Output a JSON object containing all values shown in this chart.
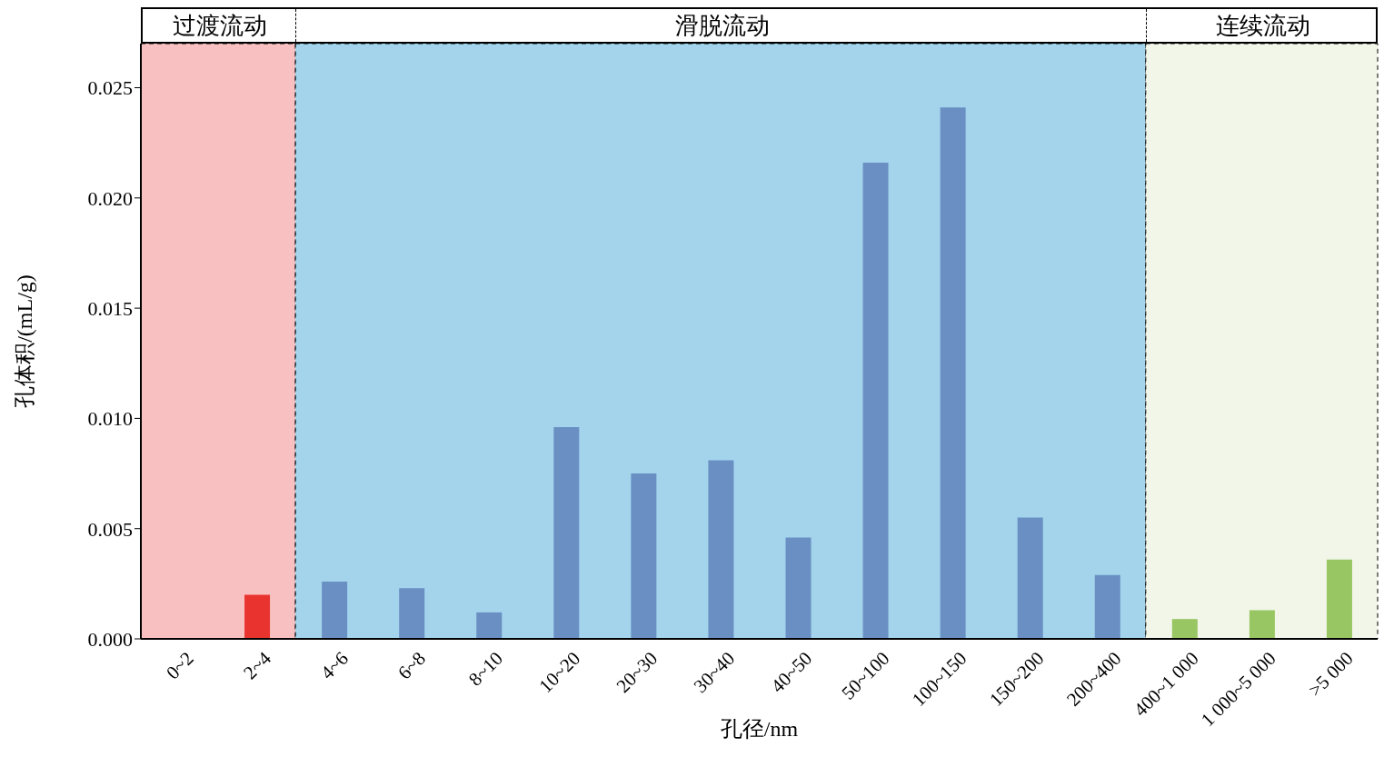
{
  "chart_data": {
    "type": "bar",
    "xlabel": "孔径/nm",
    "ylabel": "孔体积/(mL/g)",
    "categories": [
      "0~2",
      "2~4",
      "4~6",
      "6~8",
      "8~10",
      "10~20",
      "20~30",
      "30~40",
      "40~50",
      "50~100",
      "100~150",
      "150~200",
      "200~400",
      "400~1 000",
      "1 000~5 000",
      ">5 000"
    ],
    "values": [
      0,
      0.002,
      0.0026,
      0.0023,
      0.0012,
      0.0096,
      0.0075,
      0.0081,
      0.0046,
      0.0216,
      0.0241,
      0.0055,
      0.0029,
      0.0009,
      0.0013,
      0.0036
    ],
    "colors": [
      "#e8332e",
      "#e8332e",
      "#6a8fc3",
      "#6a8fc3",
      "#6a8fc3",
      "#6a8fc3",
      "#6a8fc3",
      "#6a8fc3",
      "#6a8fc3",
      "#6a8fc3",
      "#6a8fc3",
      "#6a8fc3",
      "#6a8fc3",
      "#98c663",
      "#98c663",
      "#98c663"
    ],
    "ylim": [
      0,
      0.027
    ],
    "yticks": [
      {
        "value": 0,
        "label": "0.000"
      },
      {
        "value": 0.005,
        "label": "0.005"
      },
      {
        "value": 0.01,
        "label": "0.010"
      },
      {
        "value": 0.015,
        "label": "0.015"
      },
      {
        "value": 0.02,
        "label": "0.020"
      },
      {
        "value": 0.025,
        "label": "0.025"
      }
    ],
    "bands": [
      {
        "axis": "x",
        "from": "0~2",
        "to": "2~4",
        "label": "过渡流动",
        "color": "#f8c0c0"
      },
      {
        "axis": "x",
        "from": "4~6",
        "to": "200~400",
        "label": "滑脱流动",
        "color": "#a3d4ec"
      },
      {
        "axis": "x",
        "from": "400~1 000",
        "to": ">5 000",
        "label": "连续流动",
        "color": "#f1f6e8"
      }
    ]
  }
}
